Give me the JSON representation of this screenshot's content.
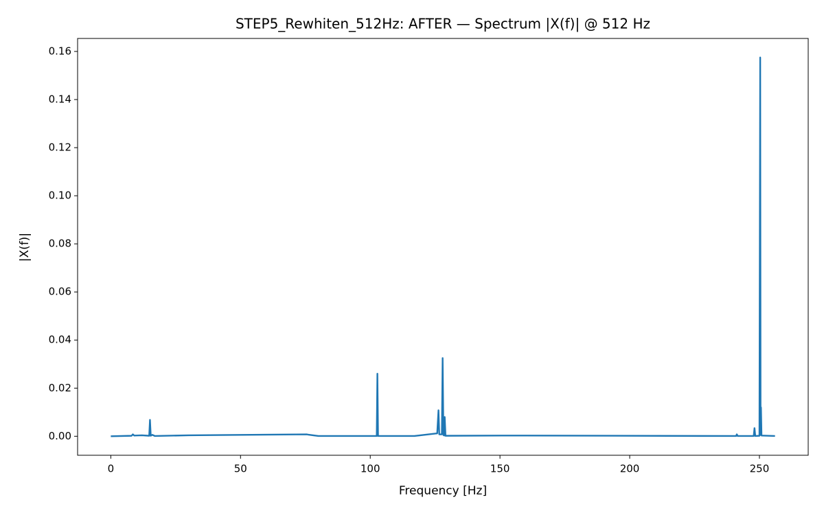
{
  "chart_data": {
    "type": "line",
    "title": "STEP5_Rewhiten_512Hz: AFTER — Spectrum |X(f)| @ 512 Hz",
    "xlabel": "Frequency [Hz]",
    "ylabel": "|X(f)|",
    "x": [
      0,
      8,
      8.5,
      9,
      12,
      14.8,
      15.1,
      15.4,
      16,
      17,
      30,
      75.5,
      76,
      80,
      102.5,
      102.75,
      103,
      117,
      125.8,
      126.3,
      126.6,
      127.6,
      127.9,
      128.2,
      128.5,
      128.7,
      129,
      151,
      241,
      241.3,
      241.6,
      247.8,
      248.1,
      248.4,
      250,
      250.3,
      250.45,
      250.6,
      250.8,
      256
    ],
    "series": [
      {
        "color": "#1f77b4",
        "values": [
          0,
          0.0002,
          0.0008,
          0.0003,
          0.0004,
          0.0002,
          0.0068,
          0.0002,
          0.0006,
          0.0001,
          0.0004,
          0.0008,
          0.0007,
          0.0001,
          0.0001,
          0.026,
          0.0001,
          0.0001,
          0.0012,
          0.0108,
          0.0008,
          0.0008,
          0.0325,
          0.0005,
          0.0003,
          0.008,
          0.0002,
          0.0003,
          0.0001,
          0.0008,
          0.0001,
          0.0001,
          0.0034,
          0.0001,
          0.0002,
          0.1575,
          0.0005,
          0.012,
          0.0003,
          0.0001
        ]
      }
    ],
    "xlim": [
      -12.8,
      268.8
    ],
    "ylim": [
      -0.0079,
      0.1654
    ],
    "xticks": [
      0,
      50,
      100,
      150,
      200,
      250
    ],
    "yticks": [
      {
        "value": 0,
        "label": "0.00"
      },
      {
        "value": 0.02,
        "label": "0.02"
      },
      {
        "value": 0.04,
        "label": "0.04"
      },
      {
        "value": 0.06,
        "label": "0.06"
      },
      {
        "value": 0.08,
        "label": "0.08"
      },
      {
        "value": 0.1,
        "label": "0.10"
      },
      {
        "value": 0.12,
        "label": "0.12"
      },
      {
        "value": 0.14,
        "label": "0.14"
      },
      {
        "value": 0.16,
        "label": "0.16"
      }
    ],
    "grid": false
  }
}
